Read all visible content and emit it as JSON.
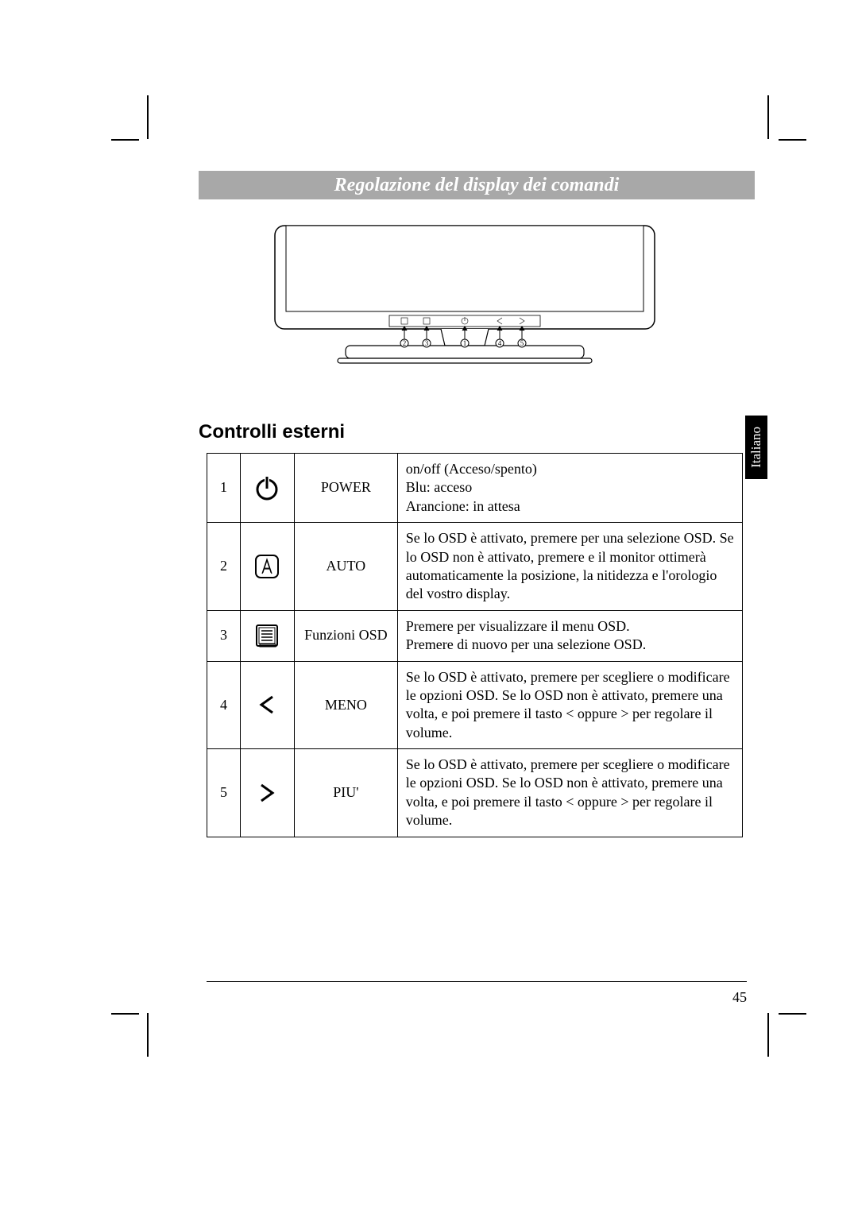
{
  "header": {
    "title": "Regolazione del display dei comandi",
    "title_bg": "#a8a8a8",
    "title_color": "#ffffff"
  },
  "section": {
    "heading": "Controlli esterni"
  },
  "language_tab": {
    "label": "Italiano",
    "bg": "#000000",
    "color": "#ffffff"
  },
  "diagram": {
    "callouts": [
      "2",
      "3",
      "1",
      "4",
      "5"
    ],
    "panel_symbols": [
      "A-rect",
      "menu-rect",
      "power",
      "less",
      "greater"
    ]
  },
  "controls": [
    {
      "num": "1",
      "icon": "power",
      "label": "POWER",
      "desc_lines": [
        "on/off (Acceso/spento)",
        "Blu: acceso",
        "Arancione: in attesa"
      ]
    },
    {
      "num": "2",
      "icon": "auto",
      "label": "AUTO",
      "desc_lines": [
        "Se lo OSD è attivato, premere per una selezione OSD. Se lo OSD non è attivato, premere e il monitor ottimerà automaticamente la posizione, la nitidezza e l'orologio del vostro display."
      ]
    },
    {
      "num": "3",
      "icon": "menu",
      "label": "Funzioni OSD",
      "desc_lines": [
        "Premere per visualizzare il menu OSD.",
        "Premere di nuovo per una selezione OSD."
      ]
    },
    {
      "num": "4",
      "icon": "less",
      "label": "MENO",
      "desc_lines": [
        "Se lo OSD è attivato, premere per scegliere o modificare le opzioni OSD. Se lo OSD non è attivato, premere una volta, e poi premere il tasto < oppure > per regolare il volume."
      ]
    },
    {
      "num": "5",
      "icon": "greater",
      "label": "PIU'",
      "desc_lines": [
        "Se lo OSD è attivato, premere per scegliere o modificare le opzioni OSD. Se lo OSD non è attivato, premere una volta, e poi premere il tasto < oppure > per regolare il volume."
      ]
    }
  ],
  "footer": {
    "page_number": "45"
  }
}
